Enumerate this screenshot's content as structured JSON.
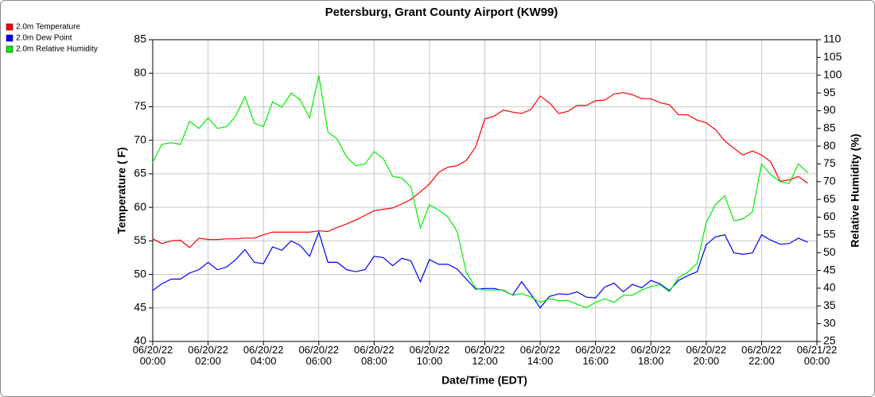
{
  "chart_data": {
    "type": "line",
    "title": "Petersburg, Grant County Airport (KW99)",
    "x_label": "Date/Time (EDT)",
    "y_label": "Temperature ( F)",
    "y2_label": "Relative Humidity (%)",
    "x": [
      0,
      0.33,
      0.67,
      1,
      1.33,
      1.67,
      2,
      2.33,
      2.67,
      3,
      3.33,
      3.67,
      4,
      4.33,
      4.67,
      5,
      5.33,
      5.67,
      6,
      6.33,
      6.67,
      7,
      7.33,
      7.67,
      8,
      8.33,
      8.67,
      9,
      9.33,
      9.67,
      10,
      10.33,
      10.67,
      11,
      11.33,
      11.67,
      12,
      12.33,
      12.67,
      13,
      13.33,
      13.67,
      14,
      14.33,
      14.67,
      15,
      15.33,
      15.67,
      16,
      16.33,
      16.67,
      17,
      17.33,
      17.67,
      18,
      18.33,
      18.67,
      19,
      19.33,
      19.67,
      20,
      20.33,
      20.67,
      21,
      21.33,
      21.67,
      22,
      22.33,
      22.67,
      23,
      23.33,
      23.67
    ],
    "xlim": [
      0,
      24
    ],
    "xticks": [
      {
        "value": 0,
        "label": "06/20/22 00:00"
      },
      {
        "value": 2,
        "label": "06/20/22 02:00"
      },
      {
        "value": 4,
        "label": "06/20/22 04:00"
      },
      {
        "value": 6,
        "label": "06/20/22 06:00"
      },
      {
        "value": 8,
        "label": "06/20/22 08:00"
      },
      {
        "value": 10,
        "label": "06/20/22 10:00"
      },
      {
        "value": 12,
        "label": "06/20/22 12:00"
      },
      {
        "value": 14,
        "label": "06/20/22 14:00"
      },
      {
        "value": 16,
        "label": "06/20/22 16:00"
      },
      {
        "value": 18,
        "label": "06/20/22 18:00"
      },
      {
        "value": 20,
        "label": "06/20/22 20:00"
      },
      {
        "value": 22,
        "label": "06/20/22 22:00"
      },
      {
        "value": 24,
        "label": "06/21/22 00:00"
      }
    ],
    "ylim": [
      40,
      85
    ],
    "yticks": [
      40,
      45,
      50,
      55,
      60,
      65,
      70,
      75,
      80,
      85
    ],
    "y2lim": [
      25,
      110
    ],
    "y2ticks": [
      25,
      30,
      35,
      40,
      45,
      50,
      55,
      60,
      65,
      70,
      75,
      80,
      85,
      90,
      95,
      100,
      105,
      110
    ],
    "grid": true,
    "legend": "upper left",
    "series": [
      {
        "name": "2.0m Temperature",
        "color": "#ff0000",
        "values": [
          55.3,
          54.6,
          55.0,
          55.1,
          54.0,
          55.4,
          55.2,
          55.2,
          55.3,
          55.3,
          55.4,
          55.4,
          55.9,
          56.3,
          56.3,
          56.3,
          56.3,
          56.3,
          56.5,
          56.4,
          57.0,
          57.5,
          58.1,
          58.8,
          59.5,
          59.7,
          59.9,
          60.5,
          61.2,
          62.3,
          63.5,
          65.2,
          66.0,
          66.2,
          67.0,
          69.0,
          73.2,
          73.6,
          74.5,
          74.2,
          74.0,
          74.6,
          76.6,
          75.6,
          74.0,
          74.3,
          75.2,
          75.2,
          75.9,
          76.0,
          76.9,
          77.1,
          76.8,
          76.2,
          76.2,
          75.6,
          75.3,
          73.8,
          73.8,
          73.0,
          72.6,
          71.6,
          69.9,
          68.8,
          67.8,
          68.4,
          67.8,
          66.8,
          63.9,
          64.1,
          64.6,
          63.6
        ]
      },
      {
        "name": "2.0m Dew Point",
        "color": "#0000ff",
        "values": [
          47.6,
          48.6,
          49.3,
          49.3,
          50.2,
          50.7,
          51.8,
          50.7,
          51.1,
          52.2,
          53.7,
          51.8,
          51.6,
          54.1,
          53.6,
          55.0,
          54.3,
          52.7,
          56.3,
          51.8,
          51.8,
          50.7,
          50.4,
          50.7,
          52.7,
          52.5,
          51.3,
          52.4,
          52.0,
          48.9,
          52.2,
          51.5,
          51.5,
          50.8,
          49.3,
          47.8,
          47.9,
          47.9,
          47.6,
          46.9,
          48.9,
          47.0,
          45.0,
          46.7,
          47.1,
          47.0,
          47.4,
          46.6,
          46.5,
          48.1,
          48.7,
          47.4,
          48.5,
          48.0,
          49.1,
          48.6,
          47.6,
          49.1,
          49.8,
          50.4,
          54.4,
          55.6,
          55.9,
          53.2,
          53.0,
          53.2,
          55.9,
          55.1,
          54.5,
          54.6,
          55.4,
          54.8
        ]
      },
      {
        "name": "2.0m Relative Humidity",
        "color": "#00ee00",
        "axis": "y2",
        "values": [
          75.5,
          80.5,
          81,
          80.5,
          87,
          85,
          88,
          85,
          85.5,
          88.5,
          94,
          86.5,
          85.5,
          92.5,
          91,
          95,
          93,
          88,
          100,
          84,
          82,
          77,
          74.5,
          75,
          78.5,
          76.5,
          71.5,
          71,
          68.5,
          57,
          63.5,
          62,
          60,
          56,
          44.5,
          40,
          39.5,
          39.5,
          39.5,
          38,
          38.5,
          37.5,
          36,
          37,
          36.5,
          36.5,
          35.5,
          34.5,
          36,
          37,
          36,
          38,
          38,
          39.5,
          40.5,
          41,
          39,
          43,
          44.5,
          47,
          58.5,
          63.5,
          66,
          59,
          59.5,
          61.5,
          75,
          72,
          70,
          69.5,
          75,
          72.5
        ]
      }
    ]
  }
}
